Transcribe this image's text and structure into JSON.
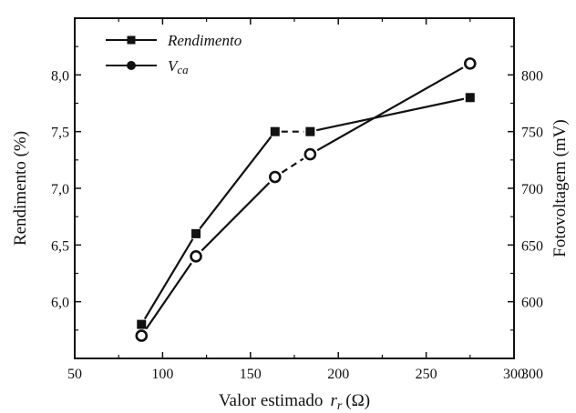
{
  "chart_data": {
    "type": "line",
    "xlabel": "Valor estimado",
    "xlabel_var": "r",
    "xlabel_sub": "r",
    "xlabel_unit": "(Ω)",
    "ylabel_left": "Rendimento (%)",
    "ylabel_right": "Fotovoltagem (mV)",
    "xlim": [
      50,
      300
    ],
    "ylim_left": [
      5.5,
      8.5
    ],
    "ylim_right": [
      550,
      850
    ],
    "x_ticks": [
      50,
      100,
      150,
      200,
      250,
      300
    ],
    "y_left_ticks": [
      6.0,
      6.5,
      7.0,
      7.5,
      8.0
    ],
    "y_left_tick_labels": [
      "6,0",
      "6,5",
      "7,0",
      "7,5",
      "8,0"
    ],
    "y_right_ticks": [
      600,
      650,
      700,
      750,
      800
    ],
    "grid": false,
    "legend_position": "top-left",
    "series": [
      {
        "name": "Rendimento",
        "axis": "left",
        "marker": "square",
        "x": [
          88,
          119,
          164,
          184,
          275
        ],
        "y": [
          5.8,
          6.6,
          7.5,
          7.5,
          7.8
        ]
      },
      {
        "name": "V",
        "name_sub": "ca",
        "axis": "right",
        "marker": "open-circle",
        "x": [
          88,
          119,
          164,
          184,
          275
        ],
        "y": [
          570,
          640,
          710,
          730,
          810
        ]
      }
    ]
  }
}
